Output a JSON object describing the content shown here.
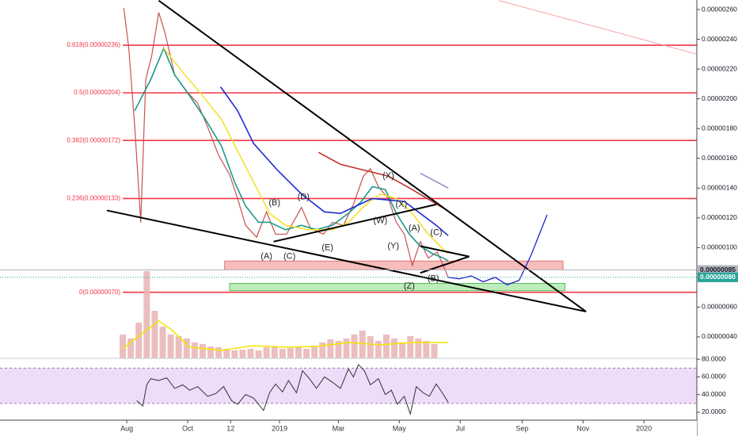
{
  "chart_data": {
    "type": "line",
    "xlim": [
      -127,
      571
    ],
    "xticks": [
      {
        "value": 0,
        "label": "Aug"
      },
      {
        "value": 61,
        "label": "Oct"
      },
      {
        "value": 104,
        "label": "12"
      },
      {
        "value": 153,
        "label": "2019"
      },
      {
        "value": 212,
        "label": "Mar"
      },
      {
        "value": 273,
        "label": "May"
      },
      {
        "value": 334,
        "label": "Jul"
      },
      {
        "value": 396,
        "label": "Sep"
      },
      {
        "value": 457,
        "label": "Nov"
      },
      {
        "value": 518,
        "label": "2020"
      }
    ],
    "ylim": [
      2.56e-08,
      2.664e-07
    ],
    "yticks": [
      {
        "value": 2.6e-07,
        "label": "0.00000260"
      },
      {
        "value": 2.4e-07,
        "label": "0.00000240"
      },
      {
        "value": 2.2e-07,
        "label": "0.00000220"
      },
      {
        "value": 2e-07,
        "label": "0.00000200"
      },
      {
        "value": 1.8e-07,
        "label": "0.00000180"
      },
      {
        "value": 1.6e-07,
        "label": "0.00000160"
      },
      {
        "value": 1.4e-07,
        "label": "0.00000140"
      },
      {
        "value": 1.2e-07,
        "label": "0.00000120"
      },
      {
        "value": 1e-07,
        "label": "0.00000100"
      },
      {
        "value": 6e-08,
        "label": "0.00000060"
      },
      {
        "value": 4e-08,
        "label": "0.00000040"
      }
    ],
    "series": [
      {
        "color": "#c8524f",
        "x": [
          -3,
          2,
          8,
          14,
          19,
          25,
          32,
          38,
          48,
          60,
          71,
          81,
          92,
          103,
          111,
          119,
          130,
          140,
          149,
          160,
          175,
          184,
          197,
          206,
          217,
          227,
          237,
          244,
          252,
          262,
          270,
          278,
          286,
          294,
          302,
          311,
          317,
          322
        ],
        "values": [
          2.61e-07,
          2.34e-07,
          1.81e-07,
          1.17e-07,
          2.13e-07,
          2.29e-07,
          2.58e-07,
          2.45e-07,
          2.16e-07,
          2.05e-07,
          1.97e-07,
          1.81e-07,
          1.62e-07,
          1.49e-07,
          1.33e-07,
          1.15e-07,
          1.07e-07,
          1.24e-07,
          1.09e-07,
          1.09e-07,
          1.27e-07,
          1.13e-07,
          1.09e-07,
          1.17e-07,
          1.15e-07,
          1.29e-07,
          1.48e-07,
          1.53e-07,
          1.41e-07,
          1.33e-07,
          1.17e-07,
          1.09e-07,
          8.8e-08,
          1.04e-07,
          9.3e-08,
          9.7e-08,
          8.8e-08,
          8e-08
        ]
      },
      {
        "color": "#1a9a8a",
        "x": [
          8,
          24,
          37,
          48,
          63,
          79,
          95,
          108,
          119,
          132,
          143,
          159,
          175,
          190,
          206,
          222,
          235,
          246,
          259,
          270,
          283,
          294,
          306,
          317,
          322
        ],
        "values": [
          1.92e-07,
          2.13e-07,
          2.34e-07,
          2.16e-07,
          2.02e-07,
          1.86e-07,
          1.68e-07,
          1.44e-07,
          1.28e-07,
          1.17e-07,
          1.17e-07,
          1.12e-07,
          1.15e-07,
          1.12e-07,
          1.15e-07,
          1.23e-07,
          1.31e-07,
          1.41e-07,
          1.39e-07,
          1.23e-07,
          1.09e-07,
          1.01e-07,
          9.6e-08,
          9.3e-08,
          9.1e-08
        ]
      },
      {
        "color": "#f5e130",
        "x": [
          37,
          56,
          76,
          95,
          111,
          127,
          143,
          159,
          183,
          206,
          222,
          238,
          254,
          270,
          286,
          302,
          317,
          322
        ],
        "values": [
          2.34e-07,
          2.18e-07,
          2.02e-07,
          1.86e-07,
          1.65e-07,
          1.44e-07,
          1.23e-07,
          1.15e-07,
          1.12e-07,
          1.12e-07,
          1.17e-07,
          1.28e-07,
          1.36e-07,
          1.33e-07,
          1.23e-07,
          1.09e-07,
          9.9e-08,
          9.6e-08
        ]
      },
      {
        "color": "#1e2bd0",
        "x": [
          94,
          111,
          127,
          151,
          175,
          198,
          214,
          230,
          246,
          262,
          278,
          294,
          310,
          322
        ],
        "values": [
          2.08e-07,
          1.92e-07,
          1.7e-07,
          1.52e-07,
          1.36e-07,
          1.24e-07,
          1.23e-07,
          1.28e-07,
          1.33e-07,
          1.32e-07,
          1.31e-07,
          1.23e-07,
          1.15e-07,
          1.08e-07
        ]
      },
      {
        "color": "#c0302b",
        "x": [
          192,
          214,
          238,
          262,
          286,
          306,
          321
        ],
        "values": [
          1.64e-07,
          1.56e-07,
          1.52e-07,
          1.48e-07,
          1.39e-07,
          1.31e-07,
          1.25e-07
        ]
      },
      {
        "color": "#a58fc8",
        "x": [
          294,
          322
        ],
        "values": [
          1.5e-07,
          1.4e-07
        ]
      }
    ],
    "fib_color": "#f23645",
    "fib_levels": [
      {
        "value": 2.36e-07,
        "label": "0.618(0.00000236)"
      },
      {
        "value": 2.04e-07,
        "label": "0.5(0.00000204)"
      },
      {
        "value": 1.72e-07,
        "label": "0.382(0.00000172)"
      },
      {
        "value": 1.33e-07,
        "label": "0.236(0.00000133)"
      },
      {
        "value": 7e-08,
        "label": "0(0.00000070)"
      }
    ],
    "trendlines": [
      {
        "color": "#000000",
        "x": [
          32,
          460
        ],
        "y": [
          2.66e-07,
          5.7e-08
        ]
      },
      {
        "color": "#000000",
        "x": [
          -20,
          460
        ],
        "y": [
          1.25e-07,
          5.7e-08
        ]
      },
      {
        "color": "#000000",
        "x": [
          147,
          310
        ],
        "y": [
          1.04e-07,
          1.29e-07
        ]
      },
      {
        "color": "#000000",
        "x": [
          294,
          343
        ],
        "y": [
          1.01e-07,
          9.4e-08
        ]
      },
      {
        "color": "#000000",
        "x": [
          294,
          343
        ],
        "y": [
          8.3e-08,
          9.4e-08
        ]
      },
      {
        "color": "#f4a0a0",
        "x": [
          373,
          571
        ],
        "y": [
          2.66e-07,
          2.3e-07
        ]
      }
    ],
    "zones": [
      {
        "color": "#f4a6a6",
        "x": [
          98,
          437
        ],
        "y": [
          8.5e-08,
          9.1e-08
        ]
      },
      {
        "color": "#a8e6a3",
        "x": [
          103,
          439
        ],
        "y": [
          7.1e-08,
          7.6e-08
        ]
      }
    ],
    "projection": {
      "color": "#1e22c9",
      "x": [
        322,
        333,
        345,
        357,
        369,
        381,
        393,
        405,
        421
      ],
      "values": [
        8e-08,
        7.9e-08,
        8.1e-08,
        7.7e-08,
        8e-08,
        7.5e-08,
        7.8e-08,
        9.5e-08,
        1.22e-07
      ]
    },
    "price_tags": [
      {
        "value": 8.5e-08,
        "label": "0.00000085",
        "color": "#b2b5be"
      },
      {
        "value": 8e-08,
        "label": "0.00000080",
        "color": "#26a69a"
      }
    ],
    "annotations": [
      {
        "text": "(A)",
        "x": 140,
        "y": 9.4e-08
      },
      {
        "text": "(B)",
        "x": 148,
        "y": 1.3e-07
      },
      {
        "text": "(C)",
        "x": 163,
        "y": 9.4e-08
      },
      {
        "text": "(D)",
        "x": 177,
        "y": 1.34e-07
      },
      {
        "text": "(E)",
        "x": 201,
        "y": 1e-07
      },
      {
        "text": "(W)",
        "x": 254,
        "y": 1.18e-07
      },
      {
        "text": "(X)",
        "x": 262,
        "y": 1.48e-07
      },
      {
        "text": "(X)",
        "x": 275,
        "y": 1.29e-07
      },
      {
        "text": "(Y)",
        "x": 267,
        "y": 1.01e-07
      },
      {
        "text": "(Z)",
        "x": 283,
        "y": 7.4e-08
      },
      {
        "text": "(A)",
        "x": 288,
        "y": 1.13e-07
      },
      {
        "text": "(B)",
        "x": 307,
        "y": 7.9e-08
      },
      {
        "text": "(C)",
        "x": 310,
        "y": 1.1e-07
      }
    ],
    "volume": {
      "color": "#e8b4b4",
      "ylim": [
        0,
        120
      ],
      "x": [
        -4,
        4,
        12,
        20,
        28,
        36,
        44,
        52,
        60,
        68,
        76,
        84,
        92,
        100,
        108,
        116,
        124,
        132,
        140,
        148,
        156,
        164,
        172,
        180,
        188,
        196,
        204,
        212,
        220,
        228,
        236,
        244,
        252,
        260,
        268,
        276,
        284,
        292,
        300,
        308
      ],
      "values": [
        30,
        25,
        45,
        110,
        60,
        40,
        30,
        28,
        25,
        20,
        18,
        15,
        14,
        12,
        10,
        11,
        12,
        10,
        14,
        15,
        12,
        13,
        14,
        12,
        16,
        20,
        24,
        22,
        25,
        30,
        35,
        28,
        22,
        30,
        25,
        20,
        28,
        25,
        22,
        18
      ],
      "ma": {
        "color": "#f2e600",
        "x": [
          -4,
          16,
          32,
          44,
          63,
          95,
          127,
          159,
          190,
          222,
          254,
          286,
          322
        ],
        "values": [
          12,
          32,
          47,
          37,
          14,
          10,
          16,
          14,
          15,
          20,
          17,
          20,
          20
        ]
      }
    },
    "rsi": {
      "ylim": [
        11,
        82
      ],
      "color": "#333333",
      "band": [
        30,
        70
      ],
      "band_color": "#eedcf8",
      "yticks": [
        {
          "value": 80,
          "label": "80.0000"
        },
        {
          "value": 60,
          "label": "60.0000"
        },
        {
          "value": 40,
          "label": "40.0000"
        },
        {
          "value": 20,
          "label": "20.0000"
        }
      ],
      "x": [
        10,
        16,
        20,
        24,
        32,
        40,
        48,
        56,
        63,
        71,
        81,
        89,
        97,
        105,
        111,
        119,
        127,
        137,
        143,
        149,
        156,
        162,
        170,
        176,
        183,
        190,
        198,
        206,
        214,
        222,
        227,
        232,
        238,
        244,
        252,
        259,
        265,
        271,
        278,
        284,
        290,
        297,
        303,
        310,
        316,
        322
      ],
      "values": [
        33,
        27,
        51,
        58,
        56,
        59,
        47,
        51,
        45,
        49,
        38,
        41,
        49,
        33,
        29,
        40,
        36,
        22,
        42,
        52,
        43,
        56,
        42,
        67,
        58,
        47,
        60,
        54,
        47,
        69,
        60,
        74,
        67,
        51,
        58,
        40,
        45,
        29,
        38,
        18,
        49,
        42,
        38,
        52,
        42,
        31
      ]
    }
  }
}
